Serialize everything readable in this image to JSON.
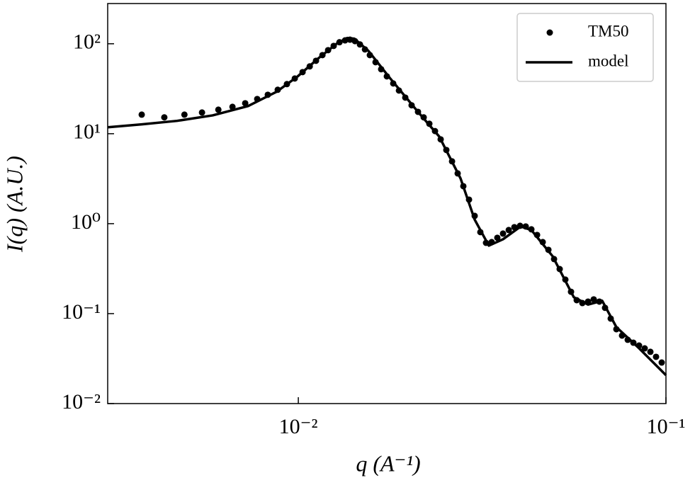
{
  "chart_data": {
    "type": "scatter",
    "xlabel": "q (A⁻¹)",
    "ylabel": "I(q) (A.U.)",
    "xscale": "log",
    "yscale": "log",
    "xlim": [
      0.00303,
      0.1
    ],
    "ylim": [
      0.01,
      280
    ],
    "xticks": [
      {
        "value": 0.01,
        "label": "10⁻²"
      },
      {
        "value": 0.1,
        "label": "10⁻¹"
      }
    ],
    "yticks": [
      {
        "value": 0.01,
        "label": "10⁻²"
      },
      {
        "value": 0.1,
        "label": "10⁻¹"
      },
      {
        "value": 1,
        "label": "10⁰"
      },
      {
        "value": 10,
        "label": "10¹"
      },
      {
        "value": 100,
        "label": "10²"
      }
    ],
    "legend": "upper right",
    "series": [
      {
        "name": "TM50",
        "type": "scatter",
        "color": "#000000",
        "x": [
          0.00375,
          0.00432,
          0.0049,
          0.00547,
          0.00606,
          0.00662,
          0.00717,
          0.00773,
          0.00826,
          0.00879,
          0.00931,
          0.00978,
          0.01027,
          0.01074,
          0.01117,
          0.01163,
          0.01205,
          0.01248,
          0.01294,
          0.0134,
          0.01382,
          0.01426,
          0.01471,
          0.01518,
          0.01565,
          0.01622,
          0.0168,
          0.01741,
          0.01812,
          0.01878,
          0.01954,
          0.02033,
          0.02116,
          0.02193,
          0.02272,
          0.02354,
          0.02439,
          0.02527,
          0.02619,
          0.02713,
          0.02811,
          0.02913,
          0.03018,
          0.03127,
          0.0324,
          0.03357,
          0.03478,
          0.03604,
          0.03735,
          0.0387,
          0.0401,
          0.04155,
          0.04305,
          0.04461,
          0.04622,
          0.04789,
          0.04962,
          0.0514,
          0.05326,
          0.05518,
          0.05718,
          0.05924,
          0.06139,
          0.06361,
          0.0659,
          0.06828,
          0.07075,
          0.0733,
          0.07595,
          0.0787,
          0.08154,
          0.08449,
          0.08754,
          0.09071,
          0.09398,
          0.09737
        ],
        "values": [
          16.3,
          15.2,
          16.3,
          17.2,
          18.5,
          19.9,
          21.8,
          24.3,
          27.1,
          30.8,
          35.6,
          41.1,
          48.4,
          56.0,
          64.7,
          74.8,
          84.9,
          94.7,
          104,
          109,
          111,
          107,
          98.2,
          86.5,
          74.8,
          62.4,
          52.1,
          43.4,
          36.2,
          30.2,
          25.2,
          20.7,
          17.5,
          15.2,
          12.9,
          10.7,
          8.65,
          6.59,
          4.93,
          3.62,
          2.61,
          1.85,
          1.22,
          0.805,
          0.612,
          0.624,
          0.697,
          0.776,
          0.849,
          0.914,
          0.947,
          0.931,
          0.865,
          0.749,
          0.624,
          0.512,
          0.404,
          0.313,
          0.239,
          0.175,
          0.141,
          0.131,
          0.136,
          0.144,
          0.136,
          0.116,
          0.0881,
          0.0671,
          0.057,
          0.0512,
          0.0475,
          0.0442,
          0.0411,
          0.0376,
          0.0331,
          0.0286
        ]
      },
      {
        "name": "model",
        "type": "line",
        "color": "#000000",
        "x": [
          0.003032,
          0.00375,
          0.00468,
          0.00585,
          0.0073,
          0.00872,
          0.00996,
          0.01137,
          0.01271,
          0.01358,
          0.0142,
          0.01551,
          0.01772,
          0.02116,
          0.02417,
          0.02762,
          0.03018,
          0.03298,
          0.03604,
          0.04027,
          0.04305,
          0.04918,
          0.05616,
          0.06139,
          0.06708,
          0.0733,
          0.08375,
          0.1
        ],
        "values": [
          11.8,
          12.7,
          13.9,
          16.0,
          20.3,
          29.2,
          43.4,
          69.6,
          100,
          116,
          114,
          83.4,
          41.9,
          17.5,
          9.31,
          3.19,
          1.11,
          0.57,
          0.671,
          0.931,
          0.849,
          0.434,
          0.152,
          0.126,
          0.139,
          0.0708,
          0.0427,
          0.0207
        ]
      }
    ]
  }
}
